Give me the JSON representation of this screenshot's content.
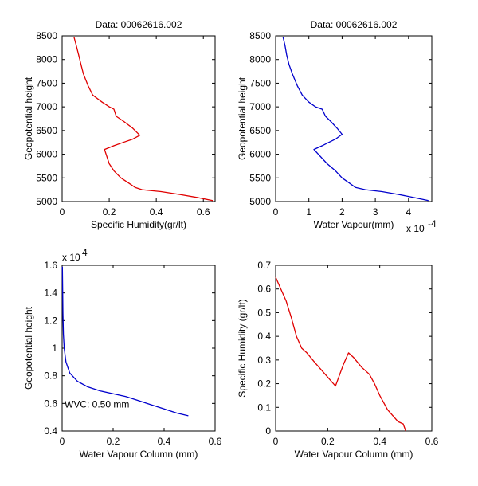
{
  "chart_data": [
    {
      "type": "line",
      "title": "Data: 00062616.002",
      "xlabel": "Specific Humidity(gr/lt)",
      "ylabel": "Geopotential height",
      "xlim": [
        0,
        0.65
      ],
      "ylim": [
        5000,
        8500
      ],
      "xticks": [
        0,
        0.2,
        0.4,
        0.6
      ],
      "xtick_labels": [
        "0",
        "0.2",
        "0.4",
        "0.6"
      ],
      "yticks": [
        5000,
        5500,
        6000,
        6500,
        7000,
        7500,
        8000,
        8500
      ],
      "ytick_labels": [
        "5000",
        "5500",
        "6000",
        "6500",
        "7000",
        "7500",
        "8000",
        "8500"
      ],
      "color": "#e00000",
      "grid": false,
      "series": [
        {
          "x": [
            0.64,
            0.58,
            0.5,
            0.42,
            0.34,
            0.31,
            0.28,
            0.25,
            0.22,
            0.2,
            0.18,
            0.22,
            0.26,
            0.3,
            0.33,
            0.3,
            0.26,
            0.23,
            0.22,
            0.2,
            0.17,
            0.13,
            0.11,
            0.09,
            0.08,
            0.07,
            0.06,
            0.05
          ],
          "y": [
            5020,
            5080,
            5150,
            5210,
            5250,
            5300,
            5400,
            5500,
            5650,
            5800,
            6100,
            6180,
            6250,
            6320,
            6400,
            6550,
            6700,
            6800,
            6950,
            7000,
            7100,
            7250,
            7450,
            7700,
            7900,
            8100,
            8300,
            8480
          ]
        }
      ]
    },
    {
      "type": "line",
      "title": "Data: 00062616.002",
      "xlabel": "Water Vapour(mm)",
      "ylabel": "Geopotential height",
      "xlim": [
        0,
        4.7
      ],
      "ylim": [
        5000,
        8500
      ],
      "xticks": [
        0,
        1,
        2,
        3,
        4
      ],
      "xtick_labels": [
        "0",
        "1",
        "2",
        "3",
        "4"
      ],
      "x_multiplier": "x 10",
      "x_multiplier_exp": "-4",
      "yticks": [
        5000,
        5500,
        6000,
        6500,
        7000,
        7500,
        8000,
        8500
      ],
      "ytick_labels": [
        "5000",
        "5500",
        "6000",
        "6500",
        "7000",
        "7500",
        "8000",
        "8500"
      ],
      "color": "#0000cc",
      "grid": false,
      "series": [
        {
          "x": [
            4.6,
            4.2,
            3.7,
            3.2,
            2.7,
            2.4,
            2.2,
            2.0,
            1.8,
            1.55,
            1.15,
            1.4,
            1.6,
            1.8,
            2.0,
            1.85,
            1.65,
            1.5,
            1.4,
            1.2,
            1.0,
            0.8,
            0.65,
            0.5,
            0.4,
            0.33,
            0.28,
            0.22
          ],
          "y": [
            5020,
            5080,
            5150,
            5210,
            5250,
            5300,
            5400,
            5500,
            5650,
            5800,
            6100,
            6180,
            6250,
            6320,
            6420,
            6550,
            6700,
            6800,
            6950,
            7000,
            7100,
            7250,
            7450,
            7700,
            7900,
            8100,
            8300,
            8480
          ]
        }
      ]
    },
    {
      "type": "line",
      "title": "",
      "xlabel": "Water Vapour Column (mm)",
      "ylabel": "Geopotential height",
      "xlim": [
        0,
        0.6
      ],
      "ylim": [
        4000,
        16000
      ],
      "xticks": [
        0,
        0.2,
        0.4,
        0.6
      ],
      "xtick_labels": [
        "0",
        "0.2",
        "0.4",
        "0.6"
      ],
      "yticks": [
        4000,
        6000,
        8000,
        10000,
        12000,
        14000,
        16000
      ],
      "ytick_labels": [
        "0.4",
        "0.6",
        "0.8",
        "1",
        "1.2",
        "1.4",
        "1.6"
      ],
      "y_multiplier": "x 10",
      "y_multiplier_exp": "4",
      "annotation": "WVC: 0.50 mm",
      "annotation_color": "#e00000",
      "color": "#0000cc",
      "grid": false,
      "series": [
        {
          "x": [
            0.495,
            0.45,
            0.4,
            0.35,
            0.3,
            0.25,
            0.2,
            0.15,
            0.1,
            0.06,
            0.03,
            0.015,
            0.008,
            0.005,
            0.003,
            0.002,
            0.001
          ],
          "y": [
            5100,
            5300,
            5600,
            5900,
            6200,
            6500,
            6700,
            6900,
            7200,
            7600,
            8200,
            9000,
            10000,
            11000,
            12500,
            14500,
            15900
          ]
        }
      ]
    },
    {
      "type": "line",
      "title": "",
      "xlabel": "Water Vapour Column (mm)",
      "ylabel": "Specific Humidity (gr/lt)",
      "xlim": [
        0,
        0.6
      ],
      "ylim": [
        0,
        0.7
      ],
      "xticks": [
        0,
        0.2,
        0.4,
        0.6
      ],
      "xtick_labels": [
        "0",
        "0.2",
        "0.4",
        "0.6"
      ],
      "yticks": [
        0,
        0.1,
        0.2,
        0.3,
        0.4,
        0.5,
        0.6,
        0.7
      ],
      "ytick_labels": [
        "0",
        "0.1",
        "0.2",
        "0.3",
        "0.4",
        "0.5",
        "0.6",
        "0.7"
      ],
      "color": "#e00000",
      "grid": false,
      "series": [
        {
          "x": [
            0.0,
            0.02,
            0.04,
            0.06,
            0.08,
            0.1,
            0.12,
            0.15,
            0.19,
            0.23,
            0.26,
            0.28,
            0.3,
            0.33,
            0.36,
            0.38,
            0.4,
            0.43,
            0.47,
            0.49,
            0.5
          ],
          "y": [
            0.65,
            0.6,
            0.55,
            0.48,
            0.4,
            0.35,
            0.33,
            0.29,
            0.24,
            0.19,
            0.28,
            0.33,
            0.31,
            0.27,
            0.24,
            0.2,
            0.15,
            0.09,
            0.04,
            0.03,
            0.0
          ]
        }
      ]
    }
  ]
}
